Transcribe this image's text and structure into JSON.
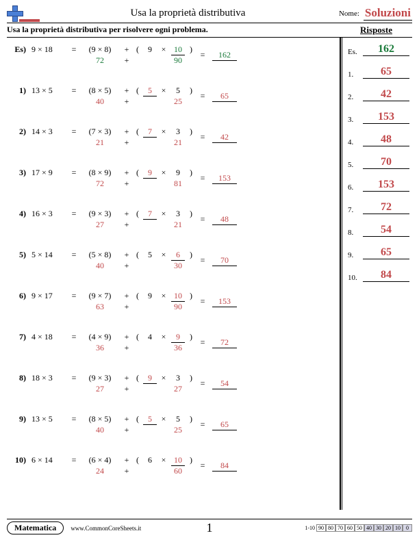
{
  "header": {
    "title": "Usa la proprietà distributiva",
    "name_label": "Nome:",
    "solutions": "Soluzioni"
  },
  "instruction": "Usa la proprietà distributiva per risolvere ogni problema.",
  "answers_title": "Risposte",
  "colors": {
    "red": "#c1484a",
    "green": "#1a7a3a",
    "accent_blue": "#4a7fd6"
  },
  "problems": [
    {
      "num": "Es)",
      "lhs": "9 × 18",
      "part1": "(9 × 8)",
      "fixed": "9",
      "blank": "10",
      "v1": "72",
      "v2": "90",
      "ans": "162",
      "blank_pos": "right",
      "example": true
    },
    {
      "num": "1)",
      "lhs": "13 × 5",
      "part1": "(8 × 5)",
      "fixed": "5",
      "blank": "5",
      "v1": "40",
      "v2": "25",
      "ans": "65",
      "blank_pos": "left"
    },
    {
      "num": "2)",
      "lhs": "14 × 3",
      "part1": "(7 × 3)",
      "fixed": "3",
      "blank": "7",
      "v1": "21",
      "v2": "21",
      "ans": "42",
      "blank_pos": "left"
    },
    {
      "num": "3)",
      "lhs": "17 × 9",
      "part1": "(8 × 9)",
      "fixed": "9",
      "blank": "9",
      "v1": "72",
      "v2": "81",
      "ans": "153",
      "blank_pos": "left"
    },
    {
      "num": "4)",
      "lhs": "16 × 3",
      "part1": "(9 × 3)",
      "fixed": "3",
      "blank": "7",
      "v1": "27",
      "v2": "21",
      "ans": "48",
      "blank_pos": "left"
    },
    {
      "num": "5)",
      "lhs": "5 × 14",
      "part1": "(5 × 8)",
      "fixed": "5",
      "blank": "6",
      "v1": "40",
      "v2": "30",
      "ans": "70",
      "blank_pos": "right"
    },
    {
      "num": "6)",
      "lhs": "9 × 17",
      "part1": "(9 × 7)",
      "fixed": "9",
      "blank": "10",
      "v1": "63",
      "v2": "90",
      "ans": "153",
      "blank_pos": "right"
    },
    {
      "num": "7)",
      "lhs": "4 × 18",
      "part1": "(4 × 9)",
      "fixed": "4",
      "blank": "9",
      "v1": "36",
      "v2": "36",
      "ans": "72",
      "blank_pos": "right"
    },
    {
      "num": "8)",
      "lhs": "18 × 3",
      "part1": "(9 × 3)",
      "fixed": "3",
      "blank": "9",
      "v1": "27",
      "v2": "27",
      "ans": "54",
      "blank_pos": "left"
    },
    {
      "num": "9)",
      "lhs": "13 × 5",
      "part1": "(8 × 5)",
      "fixed": "5",
      "blank": "5",
      "v1": "40",
      "v2": "25",
      "ans": "65",
      "blank_pos": "left"
    },
    {
      "num": "10)",
      "lhs": "6 × 14",
      "part1": "(6 × 4)",
      "fixed": "6",
      "blank": "10",
      "v1": "24",
      "v2": "60",
      "ans": "84",
      "blank_pos": "right"
    }
  ],
  "answers": [
    {
      "lbl": "Es.",
      "val": "162",
      "example": true
    },
    {
      "lbl": "1.",
      "val": "65"
    },
    {
      "lbl": "2.",
      "val": "42"
    },
    {
      "lbl": "3.",
      "val": "153"
    },
    {
      "lbl": "4.",
      "val": "48"
    },
    {
      "lbl": "5.",
      "val": "70"
    },
    {
      "lbl": "6.",
      "val": "153"
    },
    {
      "lbl": "7.",
      "val": "72"
    },
    {
      "lbl": "8.",
      "val": "54"
    },
    {
      "lbl": "9.",
      "val": "65"
    },
    {
      "lbl": "10.",
      "val": "84"
    }
  ],
  "footer": {
    "subject": "Matematica",
    "site": "www.CommonCoreSheets.it",
    "page": "1",
    "score_label": "1-10",
    "scores": [
      "90",
      "80",
      "70",
      "60",
      "50",
      "40",
      "30",
      "20",
      "10",
      "0"
    ],
    "shaded_from": 5
  }
}
